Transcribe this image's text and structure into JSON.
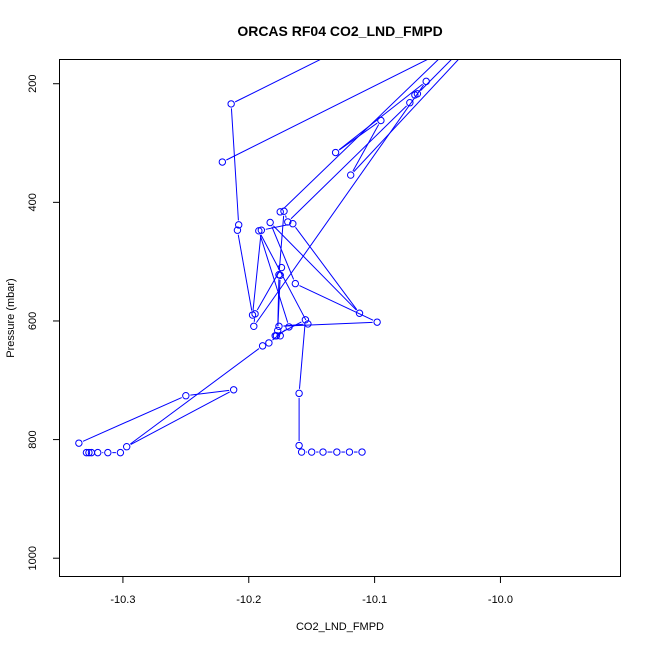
{
  "chart_data": {
    "type": "line",
    "title": "ORCAS RF04 CO2_LND_FMPD",
    "xlabel": "CO2_LND_FMPD",
    "ylabel": "Pressure (mbar)",
    "xlim": [
      -10.35,
      -9.905
    ],
    "ylim": [
      1030,
      160
    ],
    "y_inverted": true,
    "x_ticks": [
      {
        "value": -10.3,
        "label": "-10.3"
      },
      {
        "value": -10.2,
        "label": "-10.2"
      },
      {
        "value": -10.1,
        "label": "-10.1"
      },
      {
        "value": -10.0,
        "label": "-10.0"
      }
    ],
    "y_ticks": [
      {
        "value": 200,
        "label": "200"
      },
      {
        "value": 400,
        "label": "400"
      },
      {
        "value": 600,
        "label": "600"
      },
      {
        "value": 800,
        "label": "800"
      },
      {
        "value": 1000,
        "label": "1000"
      }
    ],
    "grid": false,
    "series_color": "#0000ff",
    "series": [
      {
        "points": [
          [
            -10.335,
            806
          ],
          [
            -10.25,
            726
          ],
          [
            -10.212,
            716
          ],
          [
            -10.297,
            812
          ],
          [
            -10.189,
            642
          ],
          [
            -10.184,
            637
          ],
          [
            -10.168,
            610
          ],
          [
            -10.192,
            448
          ],
          [
            -10.153,
            605
          ],
          [
            -10.176,
            609
          ],
          [
            -10.098,
            602
          ],
          [
            -10.163,
            537
          ],
          [
            -10.183,
            434
          ],
          [
            -10.112,
            587
          ],
          [
            -10.165,
            436
          ],
          [
            -10.19,
            447
          ],
          [
            -10.197,
            590
          ],
          [
            -10.209,
            447
          ],
          [
            -10.208,
            438
          ],
          [
            -10.214,
            234
          ],
          [
            -10.125,
            140
          ]
        ]
      },
      {
        "points": [
          [
            -10.221,
            332
          ],
          [
            -10.04,
            140
          ]
        ]
      },
      {
        "points": [
          [
            -10.068,
            219
          ],
          [
            -10.072,
            232
          ],
          [
            -10.169,
            433
          ],
          [
            -10.172,
            415
          ],
          [
            -10.176,
            522
          ],
          [
            -10.177,
            616
          ],
          [
            -10.175,
            523
          ],
          [
            -10.174,
            510
          ],
          [
            -10.195,
            588
          ],
          [
            -10.196,
            609
          ],
          [
            -10.059,
            196
          ],
          [
            -10.131,
            316
          ],
          [
            -10.095,
            262
          ],
          [
            -10.119,
            354
          ],
          [
            -10.025,
            140
          ]
        ]
      },
      {
        "points": [
          [
            -10.178,
            625
          ],
          [
            -10.175,
            625
          ],
          [
            -10.179,
            625
          ],
          [
            -10.155,
            598
          ],
          [
            -10.16,
            722
          ],
          [
            -10.16,
            810
          ],
          [
            -10.158,
            821
          ],
          [
            -10.15,
            821
          ],
          [
            -10.141,
            821
          ],
          [
            -10.13,
            821
          ],
          [
            -10.12,
            821
          ],
          [
            -10.11,
            821
          ]
        ]
      },
      {
        "points": [
          [
            -10.302,
            822
          ],
          [
            -10.312,
            822
          ],
          [
            -10.32,
            822
          ],
          [
            -10.325,
            822
          ],
          [
            -10.327,
            822
          ],
          [
            -10.329,
            822
          ]
        ]
      },
      {
        "points": [
          [
            -10.175,
            416
          ],
          [
            -10.04,
            140
          ]
        ]
      },
      {
        "points": [
          [
            -10.066,
            217
          ],
          [
            -10.03,
            140
          ]
        ]
      }
    ]
  }
}
